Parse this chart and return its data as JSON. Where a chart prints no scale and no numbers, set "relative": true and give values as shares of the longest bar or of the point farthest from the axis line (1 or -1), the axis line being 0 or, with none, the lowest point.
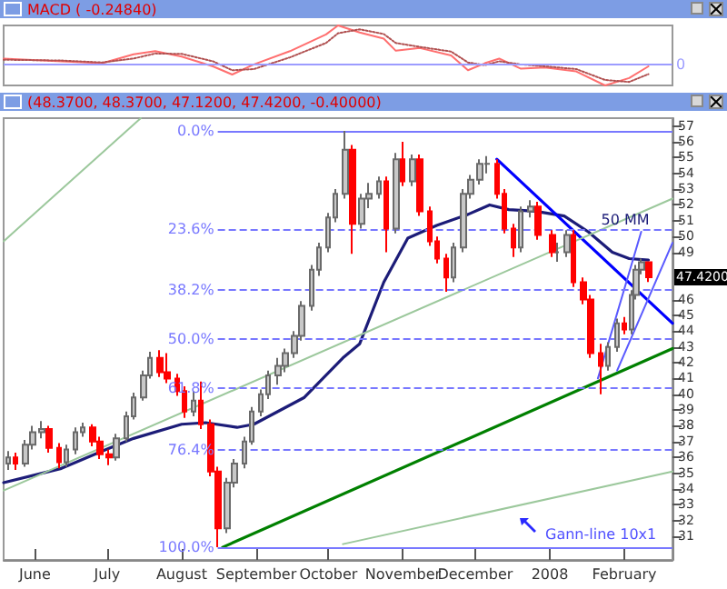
{
  "chart_data": [
    {
      "type": "line",
      "title": "MACD ( -0.24840)",
      "relative": true,
      "tick_labels": false,
      "grid": false,
      "legend": false,
      "xlim": [
        "2007-05-19",
        "2008-02-21"
      ],
      "x": [
        "2007-05-19",
        "2007-06-12",
        "2007-06-29",
        "2007-07-12",
        "2007-07-21",
        "2007-08-01",
        "2007-08-14",
        "2007-08-22",
        "2007-08-31",
        "2007-09-15",
        "2007-09-30",
        "2007-10-05",
        "2007-10-14",
        "2007-10-24",
        "2007-10-29",
        "2007-11-08",
        "2007-11-21",
        "2007-11-28",
        "2007-12-05",
        "2007-12-11",
        "2007-12-20",
        "2007-12-30",
        "2008-01-12",
        "2008-01-24",
        "2008-02-03",
        "2008-02-11"
      ],
      "series": [
        {
          "color": "#ff6f6f",
          "line_style": "solid",
          "values": [
            0.15,
            0.08,
            0.03,
            0.26,
            0.34,
            0.2,
            -0.05,
            -0.26,
            0,
            0.34,
            0.77,
            1.0,
            0.82,
            0.66,
            0.35,
            0.42,
            0.23,
            -0.15,
            0.03,
            0.15,
            -0.11,
            -0.08,
            -0.18,
            -0.54,
            -0.35,
            -0.05
          ]
        },
        {
          "color": "#b05050",
          "line_style": "dotted",
          "values": [
            0.12,
            0.1,
            0.05,
            0.15,
            0.28,
            0.27,
            0.08,
            -0.15,
            -0.12,
            0.18,
            0.55,
            0.8,
            0.9,
            0.78,
            0.55,
            0.45,
            0.33,
            0.05,
            -0.02,
            0.08,
            0.0,
            -0.05,
            -0.12,
            -0.4,
            -0.45,
            -0.25
          ]
        }
      ],
      "ref_lines": [
        {
          "axis": "y",
          "value": 0,
          "label": "0",
          "color": "#9c9cff",
          "line_style": "solid"
        }
      ]
    },
    {
      "type": "candlestick",
      "title": "(48.3700, 48.3700, 47.1200, 47.4200, -0.40000)",
      "grid": false,
      "legend": false,
      "xlim": [
        "2007-05-19",
        "2008-02-21"
      ],
      "xticks": [
        {
          "value": "2007-06-01",
          "label": "June"
        },
        {
          "value": "2007-07-01",
          "label": "July"
        },
        {
          "value": "2007-08-01",
          "label": "August"
        },
        {
          "value": "2007-09-01",
          "label": "September"
        },
        {
          "value": "2007-10-01",
          "label": "October"
        },
        {
          "value": "2007-11-01",
          "label": "November"
        },
        {
          "value": "2007-12-01",
          "label": "December"
        },
        {
          "value": "2008-01-01",
          "label": "2008"
        },
        {
          "value": "2008-02-01",
          "label": "February"
        }
      ],
      "ylim": [
        29.5,
        57.5
      ],
      "yticks": [
        31,
        32,
        33,
        34,
        35,
        36,
        37,
        38,
        39,
        40,
        41,
        42,
        43,
        44,
        45,
        46,
        49,
        50,
        51,
        52,
        53,
        54,
        55,
        56,
        57
      ],
      "x": [
        "2007-05-21",
        "2007-05-24",
        "2007-05-28",
        "2007-05-31",
        "2007-06-04",
        "2007-06-07",
        "2007-06-11",
        "2007-06-14",
        "2007-06-18",
        "2007-06-21",
        "2007-06-25",
        "2007-06-28",
        "2007-07-02",
        "2007-07-05",
        "2007-07-09",
        "2007-07-12",
        "2007-07-16",
        "2007-07-19",
        "2007-07-23",
        "2007-07-26",
        "2007-07-30",
        "2007-08-02",
        "2007-08-06",
        "2007-08-09",
        "2007-08-13",
        "2007-08-16",
        "2007-08-20",
        "2007-08-23",
        "2007-08-27",
        "2007-08-30",
        "2007-09-03",
        "2007-09-06",
        "2007-09-10",
        "2007-09-13",
        "2007-09-17",
        "2007-09-20",
        "2007-09-24",
        "2007-09-27",
        "2007-10-01",
        "2007-10-04",
        "2007-10-08",
        "2007-10-11",
        "2007-10-15",
        "2007-10-18",
        "2007-10-22",
        "2007-10-25",
        "2007-10-29",
        "2007-11-01",
        "2007-11-05",
        "2007-11-08",
        "2007-11-12",
        "2007-11-15",
        "2007-11-19",
        "2007-11-22",
        "2007-11-26",
        "2007-11-29",
        "2007-12-03",
        "2007-12-06",
        "2007-12-10",
        "2007-12-13",
        "2007-12-17",
        "2007-12-20",
        "2007-12-24",
        "2007-12-27",
        "2008-01-02",
        "2008-01-04",
        "2008-01-08",
        "2008-01-11",
        "2008-01-15",
        "2008-01-18",
        "2008-01-22",
        "2008-01-25",
        "2008-01-29",
        "2008-02-01",
        "2008-02-04",
        "2008-02-06",
        "2008-02-08",
        "2008-02-11"
      ],
      "ohlc": [
        [
          35.6,
          36.4,
          35.2,
          36.0
        ],
        [
          36.0,
          36.3,
          35.2,
          35.6
        ],
        [
          35.6,
          37.1,
          35.4,
          36.8
        ],
        [
          36.8,
          38.0,
          36.5,
          37.6
        ],
        [
          37.6,
          38.3,
          37.2,
          37.8
        ],
        [
          37.8,
          38.0,
          36.3,
          36.6
        ],
        [
          36.6,
          36.9,
          35.3,
          35.7
        ],
        [
          35.7,
          36.8,
          35.4,
          36.5
        ],
        [
          36.5,
          37.9,
          36.2,
          37.6
        ],
        [
          37.6,
          38.2,
          37.3,
          37.9
        ],
        [
          37.9,
          38.1,
          36.7,
          37.0
        ],
        [
          37.0,
          37.3,
          35.9,
          36.2
        ],
        [
          36.2,
          36.5,
          35.5,
          36.0
        ],
        [
          36.0,
          37.5,
          35.8,
          37.2
        ],
        [
          37.2,
          38.9,
          37.0,
          38.6
        ],
        [
          38.6,
          40.1,
          38.4,
          39.8
        ],
        [
          39.8,
          41.5,
          39.6,
          41.2
        ],
        [
          41.2,
          42.7,
          41.0,
          42.3
        ],
        [
          42.3,
          42.8,
          41.1,
          41.4
        ],
        [
          41.4,
          42.6,
          40.7,
          41.0
        ],
        [
          41.0,
          41.3,
          39.9,
          40.2
        ],
        [
          40.2,
          40.5,
          38.5,
          38.9
        ],
        [
          38.9,
          40.2,
          38.6,
          39.6
        ],
        [
          39.6,
          40.8,
          37.8,
          38.1
        ],
        [
          38.1,
          38.4,
          34.8,
          35.1
        ],
        [
          35.1,
          35.4,
          30.3,
          31.5
        ],
        [
          31.5,
          34.7,
          31.2,
          34.4
        ],
        [
          34.4,
          35.9,
          34.1,
          35.6
        ],
        [
          35.6,
          37.3,
          35.3,
          37.0
        ],
        [
          37.0,
          39.2,
          36.8,
          38.9
        ],
        [
          38.9,
          40.3,
          38.6,
          40.0
        ],
        [
          40.0,
          41.5,
          39.7,
          41.2
        ],
        [
          41.2,
          42.3,
          40.6,
          41.8
        ],
        [
          41.8,
          42.9,
          41.4,
          42.6
        ],
        [
          42.6,
          44.0,
          42.3,
          43.7
        ],
        [
          43.7,
          45.9,
          43.4,
          45.6
        ],
        [
          45.6,
          48.2,
          45.3,
          47.9
        ],
        [
          47.9,
          49.6,
          47.5,
          49.3
        ],
        [
          49.3,
          51.5,
          49.0,
          51.2
        ],
        [
          51.2,
          53.0,
          50.9,
          52.7
        ],
        [
          52.7,
          56.7,
          52.4,
          55.5
        ],
        [
          55.5,
          55.8,
          48.9,
          50.8
        ],
        [
          50.8,
          52.7,
          50.5,
          52.4
        ],
        [
          52.4,
          53.4,
          51.8,
          52.7
        ],
        [
          52.7,
          53.8,
          52.4,
          53.5
        ],
        [
          53.5,
          53.8,
          49.0,
          50.5
        ],
        [
          50.5,
          55.3,
          50.2,
          54.9
        ],
        [
          54.9,
          56.0,
          53.2,
          53.5
        ],
        [
          53.5,
          55.2,
          53.2,
          54.9
        ],
        [
          54.9,
          55.2,
          51.3,
          51.6
        ],
        [
          51.6,
          51.9,
          49.4,
          49.7
        ],
        [
          49.7,
          50.0,
          48.3,
          48.6
        ],
        [
          48.6,
          48.9,
          46.5,
          47.4
        ],
        [
          47.4,
          49.6,
          47.1,
          49.3
        ],
        [
          49.3,
          53.0,
          49.0,
          52.7
        ],
        [
          52.7,
          53.9,
          52.4,
          53.6
        ],
        [
          53.6,
          54.9,
          53.3,
          54.6
        ],
        [
          54.6,
          55.1,
          54.0,
          54.6
        ],
        [
          54.6,
          54.9,
          52.4,
          52.7
        ],
        [
          52.7,
          53.0,
          50.2,
          50.5
        ],
        [
          50.5,
          50.8,
          48.7,
          49.3
        ],
        [
          49.3,
          51.9,
          49.0,
          51.6
        ],
        [
          51.6,
          52.3,
          51.2,
          51.9
        ],
        [
          51.9,
          52.2,
          49.8,
          50.1
        ],
        [
          50.1,
          50.4,
          48.7,
          49.0
        ],
        [
          49.0,
          49.6,
          48.4,
          49.0
        ],
        [
          49.0,
          50.4,
          48.7,
          50.1
        ],
        [
          50.1,
          50.4,
          46.8,
          47.1
        ],
        [
          47.1,
          47.4,
          45.7,
          46.0
        ],
        [
          46.0,
          46.3,
          42.3,
          42.6
        ],
        [
          42.6,
          43.2,
          40.0,
          41.8
        ],
        [
          41.8,
          43.3,
          41.5,
          43.0
        ],
        [
          43.0,
          44.8,
          42.7,
          44.5
        ],
        [
          44.5,
          44.9,
          43.8,
          44.1
        ],
        [
          44.1,
          46.6,
          43.8,
          46.3
        ],
        [
          46.3,
          48.2,
          46.0,
          47.9
        ],
        [
          47.9,
          48.6,
          47.6,
          48.37
        ],
        [
          48.37,
          48.37,
          47.12,
          47.42
        ]
      ],
      "series": [
        {
          "type": "line",
          "name": "50 MM",
          "color": "#1c1c78",
          "x": [
            "2007-05-19",
            "2007-06-12",
            "2007-06-29",
            "2007-07-12",
            "2007-08-01",
            "2007-08-11",
            "2007-08-24",
            "2007-08-31",
            "2007-09-21",
            "2007-10-07",
            "2007-10-14",
            "2007-10-24",
            "2007-11-03",
            "2007-11-15",
            "2007-11-28",
            "2007-12-07",
            "2007-12-15",
            "2007-12-26",
            "2008-01-07",
            "2008-01-17",
            "2008-01-27",
            "2008-02-03",
            "2008-02-11"
          ],
          "values": [
            34.4,
            35.3,
            36.4,
            37.2,
            38.1,
            38.2,
            37.9,
            38.1,
            39.8,
            42.3,
            43.2,
            47.1,
            49.9,
            50.7,
            51.4,
            52.0,
            51.7,
            51.6,
            51.3,
            50.3,
            49.0,
            48.6,
            48.5
          ]
        },
        {
          "type": "line",
          "color": "#008000",
          "x": [
            "2007-08-18",
            "2008-02-21"
          ],
          "values": [
            30.3,
            42.9
          ]
        },
        {
          "type": "line",
          "color": "#0000ff",
          "x": [
            "2007-12-10",
            "2008-02-21"
          ],
          "values": [
            54.9,
            44.5
          ]
        },
        {
          "type": "line",
          "color": "#5a5aff",
          "x": [
            "2008-01-21",
            "2008-02-08"
          ],
          "values": [
            41.0,
            50.3
          ]
        },
        {
          "type": "line",
          "color": "#5a5aff",
          "x": [
            "2008-01-29",
            "2008-02-21"
          ],
          "values": [
            41.5,
            49.6
          ]
        },
        {
          "type": "line",
          "color": "#9cc89c",
          "x": [
            "2007-05-19",
            "2008-02-21"
          ],
          "values": [
            33.9,
            52.4
          ]
        },
        {
          "type": "line",
          "color": "#9cc89c",
          "x": [
            "2007-05-19",
            "2007-07-15"
          ],
          "values": [
            49.7,
            57.5
          ]
        },
        {
          "type": "line",
          "color": "#9cc89c",
          "x": [
            "2007-10-07",
            "2008-02-21"
          ],
          "values": [
            30.5,
            35.1
          ]
        }
      ],
      "ref_lines": [
        {
          "axis": "y",
          "value": 56.7,
          "color": "#7878ff",
          "line_style": "solid"
        },
        {
          "axis": "y",
          "value": 50.5,
          "color": "#7878ff",
          "line_style": "dashed"
        },
        {
          "axis": "y",
          "value": 46.6,
          "color": "#7878ff",
          "line_style": "dashed"
        },
        {
          "axis": "y",
          "value": 43.5,
          "color": "#7878ff",
          "line_style": "dashed"
        },
        {
          "axis": "y",
          "value": 40.4,
          "color": "#7878ff",
          "line_style": "dashed"
        },
        {
          "axis": "y",
          "value": 36.5,
          "color": "#7878ff",
          "line_style": "dashed"
        },
        {
          "axis": "y",
          "value": 30.3,
          "color": "#7878ff",
          "line_style": "solid"
        }
      ],
      "annotations": [
        {
          "text": "0.0%",
          "x": "2007-08-16",
          "y": 56.7
        },
        {
          "text": "23.6%",
          "x": "2007-08-16",
          "y": 50.5
        },
        {
          "text": "38.2%",
          "x": "2007-08-16",
          "y": 46.6
        },
        {
          "text": "50.0%",
          "x": "2007-08-16",
          "y": 43.5
        },
        {
          "text": "61.8%",
          "x": "2007-08-16",
          "y": 40.4
        },
        {
          "text": "76.4%",
          "x": "2007-08-16",
          "y": 36.5
        },
        {
          "text": "100.0%",
          "x": "2007-08-16",
          "y": 30.3
        },
        "Gann-line 10x1",
        "47.4200"
      ]
    }
  ]
}
